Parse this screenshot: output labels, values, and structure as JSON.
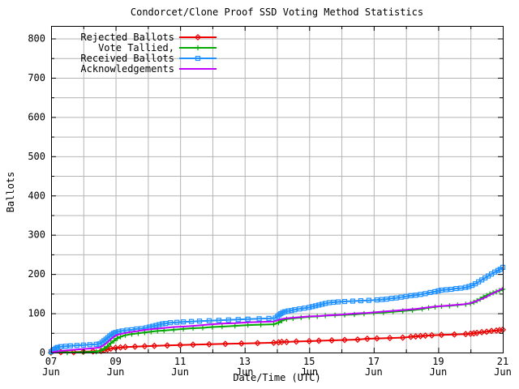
{
  "window": {
    "title": "Condorcet/Clone Proof SSD Voting Method Statistics"
  },
  "chart_data": {
    "type": "line",
    "title": "Condorcet/Clone Proof SSD Voting Method Statistics",
    "xlabel": "Date/Time (UTC)",
    "ylabel": "Ballots",
    "xlim": [
      7,
      21
    ],
    "ylim": [
      0,
      832
    ],
    "x_major_ticks": [
      7,
      9,
      11,
      13,
      15,
      17,
      19,
      21
    ],
    "x_major_tick_labels": [
      [
        "07",
        "Jun"
      ],
      [
        "09",
        "Jun"
      ],
      [
        "11",
        "Jun"
      ],
      [
        "13",
        "Jun"
      ],
      [
        "15",
        "Jun"
      ],
      [
        "17",
        "Jun"
      ],
      [
        "19",
        "Jun"
      ],
      [
        "21",
        "Jun"
      ]
    ],
    "x_minor_tick_step_days": 1,
    "y_major_tick_step": 100,
    "y_minor_tick_step": 50,
    "grid": {
      "on": true,
      "color": "#b4b4b4",
      "vertical_every_days": 1,
      "horizontal_every_units": 50
    },
    "legend": {
      "position": "top-left-inside",
      "colored_text": true
    },
    "series": [
      {
        "name": "Rejected Ballots",
        "color": "#ee0000",
        "marker": "diamond",
        "points": [
          [
            7.0,
            0
          ],
          [
            7.3,
            1
          ],
          [
            7.7,
            1
          ],
          [
            8.0,
            2
          ],
          [
            8.3,
            3
          ],
          [
            8.55,
            4
          ],
          [
            8.65,
            6
          ],
          [
            8.75,
            8
          ],
          [
            8.85,
            10
          ],
          [
            9.0,
            12
          ],
          [
            9.15,
            13
          ],
          [
            9.3,
            14
          ],
          [
            9.6,
            15
          ],
          [
            9.9,
            16
          ],
          [
            10.2,
            17
          ],
          [
            10.6,
            18
          ],
          [
            11.0,
            19
          ],
          [
            11.4,
            20
          ],
          [
            11.9,
            21
          ],
          [
            12.4,
            22
          ],
          [
            12.9,
            23
          ],
          [
            13.4,
            24
          ],
          [
            13.9,
            25
          ],
          [
            14.05,
            26
          ],
          [
            14.15,
            27
          ],
          [
            14.3,
            27
          ],
          [
            14.6,
            28
          ],
          [
            15.0,
            29
          ],
          [
            15.3,
            30
          ],
          [
            15.7,
            31
          ],
          [
            16.1,
            32
          ],
          [
            16.5,
            33
          ],
          [
            16.8,
            35
          ],
          [
            17.1,
            36
          ],
          [
            17.5,
            37
          ],
          [
            17.9,
            38
          ],
          [
            18.15,
            40
          ],
          [
            18.3,
            41
          ],
          [
            18.45,
            42
          ],
          [
            18.6,
            43
          ],
          [
            18.8,
            44
          ],
          [
            19.1,
            45
          ],
          [
            19.5,
            46
          ],
          [
            19.85,
            47
          ],
          [
            20.0,
            48
          ],
          [
            20.1,
            49
          ],
          [
            20.2,
            50
          ],
          [
            20.35,
            52
          ],
          [
            20.5,
            53
          ],
          [
            20.65,
            55
          ],
          [
            20.8,
            56
          ],
          [
            20.9,
            57
          ],
          [
            21.0,
            58
          ]
        ]
      },
      {
        "name": "Vote Tallied,",
        "color": "#00aa00",
        "marker": "plus",
        "points": [
          [
            7.0,
            0
          ],
          [
            7.5,
            0
          ],
          [
            8.0,
            1
          ],
          [
            8.4,
            2
          ],
          [
            8.55,
            5
          ],
          [
            8.65,
            10
          ],
          [
            8.75,
            16
          ],
          [
            8.85,
            24
          ],
          [
            8.95,
            30
          ],
          [
            9.05,
            36
          ],
          [
            9.15,
            40
          ],
          [
            9.3,
            44
          ],
          [
            9.5,
            47
          ],
          [
            9.7,
            49
          ],
          [
            9.9,
            51
          ],
          [
            10.1,
            53
          ],
          [
            10.3,
            55
          ],
          [
            10.5,
            56
          ],
          [
            10.8,
            58
          ],
          [
            11.1,
            60
          ],
          [
            11.4,
            62
          ],
          [
            11.7,
            63
          ],
          [
            12.0,
            65
          ],
          [
            12.3,
            66
          ],
          [
            12.7,
            68
          ],
          [
            13.1,
            70
          ],
          [
            13.5,
            71
          ],
          [
            13.9,
            72
          ],
          [
            14.05,
            76
          ],
          [
            14.15,
            81
          ],
          [
            14.3,
            85
          ],
          [
            14.5,
            87
          ],
          [
            14.75,
            89
          ],
          [
            15.0,
            91
          ],
          [
            15.25,
            92
          ],
          [
            15.5,
            94
          ],
          [
            15.8,
            95
          ],
          [
            16.1,
            96
          ],
          [
            16.4,
            97
          ],
          [
            16.7,
            99
          ],
          [
            17.0,
            101
          ],
          [
            17.3,
            102
          ],
          [
            17.6,
            104
          ],
          [
            17.9,
            106
          ],
          [
            18.2,
            108
          ],
          [
            18.5,
            111
          ],
          [
            18.7,
            114
          ],
          [
            18.9,
            116
          ],
          [
            19.1,
            118
          ],
          [
            19.35,
            119
          ],
          [
            19.6,
            121
          ],
          [
            19.85,
            123
          ],
          [
            20.0,
            125
          ],
          [
            20.1,
            128
          ],
          [
            20.2,
            132
          ],
          [
            20.3,
            136
          ],
          [
            20.4,
            141
          ],
          [
            20.5,
            145
          ],
          [
            20.6,
            149
          ],
          [
            20.7,
            152
          ],
          [
            20.8,
            155
          ],
          [
            20.9,
            158
          ],
          [
            21.0,
            161
          ]
        ]
      },
      {
        "name": "Received Ballots",
        "color": "#1e90ff",
        "marker": "square",
        "points": [
          [
            7.0,
            2
          ],
          [
            7.05,
            5
          ],
          [
            7.1,
            8
          ],
          [
            7.15,
            11
          ],
          [
            7.2,
            13
          ],
          [
            7.3,
            15
          ],
          [
            7.45,
            16
          ],
          [
            7.6,
            17
          ],
          [
            7.8,
            18
          ],
          [
            8.0,
            19
          ],
          [
            8.2,
            20
          ],
          [
            8.4,
            21
          ],
          [
            8.5,
            22
          ],
          [
            8.58,
            26
          ],
          [
            8.64,
            30
          ],
          [
            8.7,
            34
          ],
          [
            8.76,
            38
          ],
          [
            8.82,
            42
          ],
          [
            8.88,
            46
          ],
          [
            8.94,
            49
          ],
          [
            9.0,
            51
          ],
          [
            9.1,
            53
          ],
          [
            9.2,
            55
          ],
          [
            9.35,
            57
          ],
          [
            9.5,
            58
          ],
          [
            9.65,
            60
          ],
          [
            9.8,
            61
          ],
          [
            9.95,
            63
          ],
          [
            10.05,
            65
          ],
          [
            10.15,
            67
          ],
          [
            10.25,
            69
          ],
          [
            10.35,
            71
          ],
          [
            10.45,
            73
          ],
          [
            10.55,
            74
          ],
          [
            10.7,
            76
          ],
          [
            10.9,
            77
          ],
          [
            11.1,
            78
          ],
          [
            11.35,
            79
          ],
          [
            11.6,
            80
          ],
          [
            11.9,
            81
          ],
          [
            12.2,
            82
          ],
          [
            12.5,
            83
          ],
          [
            12.8,
            84
          ],
          [
            13.1,
            85
          ],
          [
            13.45,
            86
          ],
          [
            13.75,
            87
          ],
          [
            13.95,
            88
          ],
          [
            14.02,
            92
          ],
          [
            14.07,
            96
          ],
          [
            14.12,
            99
          ],
          [
            14.18,
            102
          ],
          [
            14.25,
            104
          ],
          [
            14.35,
            106
          ],
          [
            14.45,
            107
          ],
          [
            14.55,
            109
          ],
          [
            14.7,
            111
          ],
          [
            14.85,
            113
          ],
          [
            15.0,
            115
          ],
          [
            15.1,
            117
          ],
          [
            15.2,
            119
          ],
          [
            15.3,
            121
          ],
          [
            15.4,
            123
          ],
          [
            15.5,
            125
          ],
          [
            15.62,
            127
          ],
          [
            15.75,
            128
          ],
          [
            15.9,
            129
          ],
          [
            16.1,
            130
          ],
          [
            16.35,
            131
          ],
          [
            16.6,
            132
          ],
          [
            16.85,
            133
          ],
          [
            17.1,
            134
          ],
          [
            17.25,
            135
          ],
          [
            17.4,
            136
          ],
          [
            17.55,
            138
          ],
          [
            17.7,
            139
          ],
          [
            17.85,
            141
          ],
          [
            18.0,
            143
          ],
          [
            18.15,
            145
          ],
          [
            18.3,
            146
          ],
          [
            18.45,
            148
          ],
          [
            18.6,
            150
          ],
          [
            18.75,
            153
          ],
          [
            18.9,
            155
          ],
          [
            19.0,
            157
          ],
          [
            19.1,
            159
          ],
          [
            19.25,
            160
          ],
          [
            19.4,
            161
          ],
          [
            19.55,
            163
          ],
          [
            19.7,
            164
          ],
          [
            19.85,
            166
          ],
          [
            19.95,
            168
          ],
          [
            20.05,
            171
          ],
          [
            20.15,
            175
          ],
          [
            20.25,
            180
          ],
          [
            20.35,
            185
          ],
          [
            20.45,
            190
          ],
          [
            20.55,
            195
          ],
          [
            20.65,
            200
          ],
          [
            20.75,
            205
          ],
          [
            20.85,
            209
          ],
          [
            20.92,
            212
          ],
          [
            21.0,
            217
          ]
        ]
      },
      {
        "name": "Acknowledgements",
        "color": "#bf00ff",
        "marker": "none",
        "points": [
          [
            7.0,
            0
          ],
          [
            7.2,
            3
          ],
          [
            7.4,
            5
          ],
          [
            7.7,
            7
          ],
          [
            8.0,
            9
          ],
          [
            8.3,
            11
          ],
          [
            8.5,
            13
          ],
          [
            8.6,
            17
          ],
          [
            8.7,
            23
          ],
          [
            8.8,
            30
          ],
          [
            8.9,
            37
          ],
          [
            9.0,
            43
          ],
          [
            9.1,
            46
          ],
          [
            9.25,
            49
          ],
          [
            9.45,
            52
          ],
          [
            9.65,
            54
          ],
          [
            9.85,
            57
          ],
          [
            10.05,
            59
          ],
          [
            10.3,
            61
          ],
          [
            10.55,
            63
          ],
          [
            10.8,
            65
          ],
          [
            11.1,
            66
          ],
          [
            11.4,
            68
          ],
          [
            11.7,
            70
          ],
          [
            12.0,
            72
          ],
          [
            12.3,
            74
          ],
          [
            12.7,
            75
          ],
          [
            13.1,
            77
          ],
          [
            13.5,
            78
          ],
          [
            13.9,
            79
          ],
          [
            14.05,
            83
          ],
          [
            14.2,
            86
          ],
          [
            14.4,
            88
          ],
          [
            14.7,
            90
          ],
          [
            15.0,
            92
          ],
          [
            15.3,
            93
          ],
          [
            15.6,
            95
          ],
          [
            15.9,
            96
          ],
          [
            16.2,
            98
          ],
          [
            16.5,
            100
          ],
          [
            16.8,
            101
          ],
          [
            17.1,
            103
          ],
          [
            17.4,
            105
          ],
          [
            17.7,
            107
          ],
          [
            18.0,
            109
          ],
          [
            18.3,
            111
          ],
          [
            18.6,
            114
          ],
          [
            18.9,
            117
          ],
          [
            19.2,
            119
          ],
          [
            19.5,
            121
          ],
          [
            19.8,
            123
          ],
          [
            20.0,
            126
          ],
          [
            20.15,
            130
          ],
          [
            20.3,
            135
          ],
          [
            20.45,
            140
          ],
          [
            20.6,
            147
          ],
          [
            20.75,
            153
          ],
          [
            20.9,
            159
          ],
          [
            21.0,
            164
          ]
        ]
      }
    ]
  }
}
